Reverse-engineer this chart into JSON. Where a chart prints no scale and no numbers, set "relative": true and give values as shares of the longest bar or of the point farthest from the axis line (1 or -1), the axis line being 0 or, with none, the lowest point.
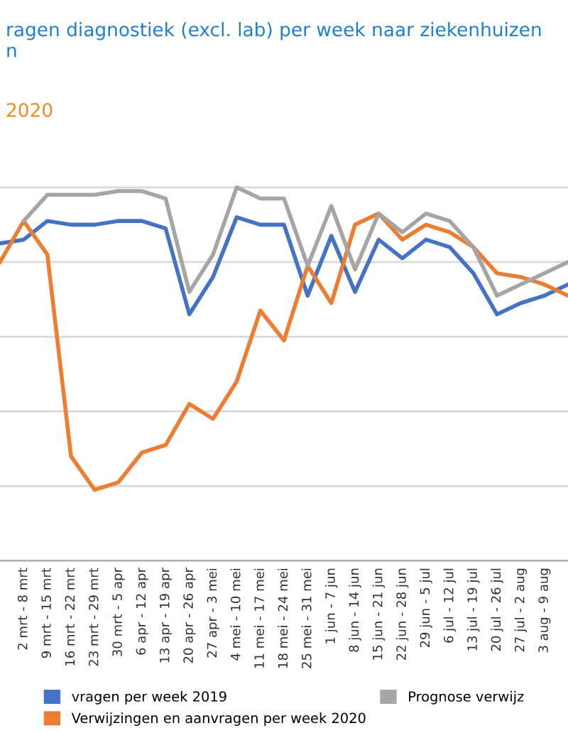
{
  "chart_data": {
    "type": "line",
    "title": "ragen diagnostiek (excl. lab) per week naar ziekenhuizen\nn",
    "subtitle": "2020",
    "relative": true,
    "grid": "y",
    "legend": "bottom",
    "marker": "none",
    "line_style": "solid",
    "categories": [
      null,
      "2 mrt - 8 mrt",
      "9 mrt - 15 mrt",
      "16 mrt - 22 mrt",
      "23 mrt - 29 mrt",
      "30 mrt - 5 apr",
      "6 apr - 12 apr",
      "13 apr - 19 apr",
      "20 apr - 26 apr",
      "27 apr - 3 mei",
      "4 mei - 10 mei",
      "11 mei - 17 mei",
      "18 mei - 24 mei",
      "25 mei - 31 mei",
      "1 jun - 7 jun",
      "8 jun - 14 jun",
      "15 jun - 21 jun",
      "22 jun - 28 jun",
      "29 jun - 5 jul",
      "6 jul - 12 jul",
      "13 jul - 19 jul",
      "20 jul - 26 jul",
      "27 jul - 2 aug",
      "3 aug - 9 aug",
      null
    ],
    "series": [
      {
        "name": "vragen per week 2019",
        "color": "#4472c4",
        "values": [
          0.85,
          0.86,
          0.91,
          0.9,
          0.9,
          0.91,
          0.91,
          0.89,
          0.66,
          0.76,
          0.92,
          0.9,
          0.9,
          0.71,
          0.87,
          0.72,
          0.86,
          0.81,
          0.86,
          0.84,
          0.77,
          0.66,
          0.69,
          0.71,
          0.74
        ]
      },
      {
        "name": "Verwijzingen en aanvragen per week 2020",
        "color": "#ed7d31",
        "values": [
          0.8,
          0.91,
          0.82,
          0.28,
          0.19,
          0.21,
          0.29,
          0.31,
          0.42,
          0.38,
          0.48,
          0.67,
          0.59,
          0.79,
          0.69,
          0.9,
          0.93,
          0.86,
          0.9,
          0.88,
          0.84,
          0.77,
          0.76,
          0.74,
          0.71
        ]
      },
      {
        "name": "Prognose verwijz",
        "color": "#a5a5a5",
        "values": [
          null,
          0.91,
          0.98,
          0.98,
          0.98,
          0.99,
          0.99,
          0.97,
          0.72,
          0.82,
          1.0,
          0.97,
          0.97,
          0.79,
          0.95,
          0.78,
          0.93,
          0.88,
          0.93,
          0.91,
          0.84,
          0.71,
          0.74,
          0.77,
          0.8
        ]
      }
    ]
  }
}
